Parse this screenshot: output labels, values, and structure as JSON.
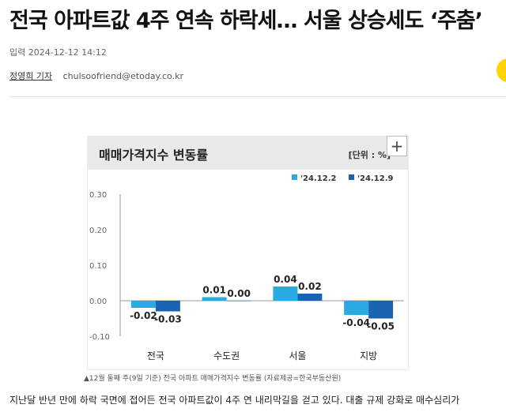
{
  "article": {
    "headline": "전국 아파트값 4주 연속 하락세… 서울 상승세도 ‘주춤’",
    "date": "입력 2024-12-12 14:12",
    "reporter": "정영희 기자",
    "email": "chulsoofriend@etoday.co.kr",
    "body": "지난달 반년 만에 하락 국면에 접어든 전국 아파트값이 4주 연 내리막길을 걷고 있다. 대출 규제 강화로 매수심리가"
  },
  "figure": {
    "title": "매매가격지수 변동률",
    "unit": "[단위 : %]",
    "source": "▲12월 둘째 주(9일 기준) 전국 아파트 매매가격지수 변동률 (자료제공=한국부동산원)",
    "zoom_icon": "plus-icon"
  },
  "colors": {
    "series1": "#29abe2",
    "series2": "#1a63b0",
    "header_bg": "#e9e9e9"
  },
  "chart_data": {
    "type": "bar",
    "title": "매매가격지수 변동률",
    "unit": "[단위 : %]",
    "categories": [
      "전국",
      "수도권",
      "서울",
      "지방"
    ],
    "series": [
      {
        "name": "'24.12.2",
        "values": [
          -0.02,
          0.01,
          0.04,
          -0.04
        ]
      },
      {
        "name": "'24.12.9",
        "values": [
          -0.03,
          0.0,
          0.02,
          -0.05
        ]
      }
    ],
    "data_labels": [
      [
        "-0.02",
        "0.01",
        "0.04",
        "-0.04"
      ],
      [
        "-0.03",
        "0.00",
        "0.02",
        "-0.05"
      ]
    ],
    "yticks": [
      "0.30",
      "0.20",
      "0.10",
      "0.00",
      "-0.10"
    ],
    "ylim": [
      -0.1,
      0.3
    ],
    "grid": false,
    "legend": "top-right"
  }
}
